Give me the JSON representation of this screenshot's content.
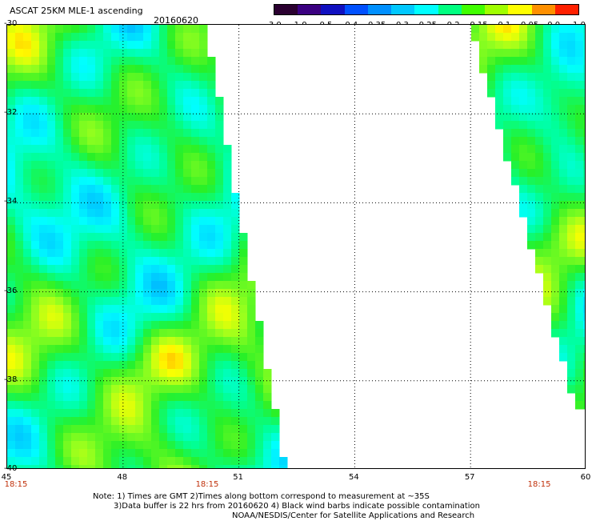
{
  "header": {
    "title": "ASCAT 25KM MLE-1 ascending",
    "date": "20160620"
  },
  "colorbar": {
    "labels": [
      "-3.0",
      "-1.0",
      "-0.5",
      "-0.4",
      "-0.35",
      "-0.3",
      "-0.25",
      "-0.2",
      "-0.15",
      "-0.1",
      "-0.05",
      "0.0",
      "1.0"
    ],
    "colors": [
      "#2a0030",
      "#3a0080",
      "#1010c0",
      "#0050ff",
      "#0090ff",
      "#00c8ff",
      "#00ffff",
      "#00ff80",
      "#40ff00",
      "#a0ff00",
      "#ffff00",
      "#ff9000",
      "#ff2000"
    ]
  },
  "map": {
    "lon_labels": [
      "45",
      "48",
      "51",
      "54",
      "57",
      "60"
    ],
    "lat_labels": [
      "-30",
      "-32",
      "-34",
      "-36",
      "-38",
      "-40"
    ],
    "lon_range": [
      45,
      60
    ],
    "lat_range": [
      -30,
      -40
    ],
    "grid": "dotted",
    "times": [
      {
        "label": "18:15",
        "lon": 45
      },
      {
        "label": "18:15",
        "lon": 50.2
      },
      {
        "label": "18:15",
        "lon": 58.8
      }
    ]
  },
  "notes": [
    "Note: 1) Times are GMT 2)Times along bottom correspond to measurement at ~35S",
    "3)Data buffer is 22 hrs from 20160620 4) Black wind barbs indicate possible contamination",
    "NOAA/NESDIS/Center for Satellite Applications and Research"
  ]
}
